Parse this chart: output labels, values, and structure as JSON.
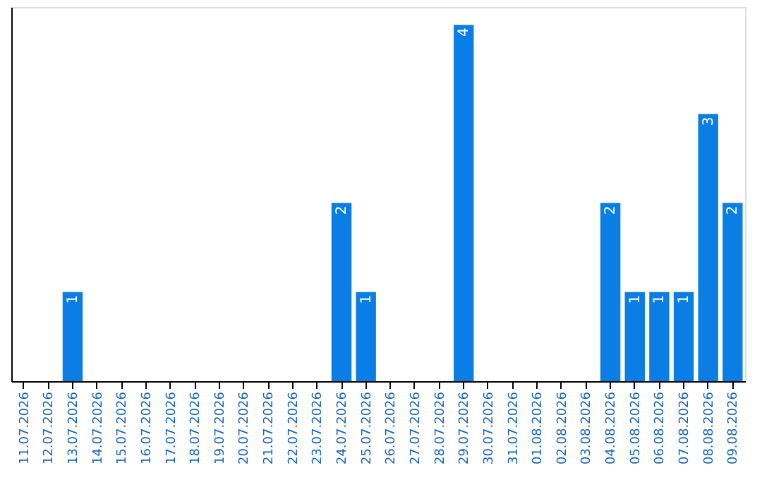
{
  "chart_data": {
    "type": "bar",
    "categories": [
      "11.07.2026",
      "12.07.2026",
      "13.07.2026",
      "14.07.2026",
      "15.07.2026",
      "16.07.2026",
      "17.07.2026",
      "18.07.2026",
      "19.07.2026",
      "20.07.2026",
      "21.07.2026",
      "22.07.2026",
      "23.07.2026",
      "24.07.2026",
      "25.07.2026",
      "26.07.2026",
      "27.07.2026",
      "28.07.2026",
      "29.07.2026",
      "30.07.2026",
      "31.07.2026",
      "01.08.2026",
      "02.08.2026",
      "03.08.2026",
      "04.08.2026",
      "05.08.2026",
      "06.08.2026",
      "07.08.2026",
      "08.08.2026",
      "09.08.2026"
    ],
    "values": [
      0,
      0,
      1,
      0,
      0,
      0,
      0,
      0,
      0,
      0,
      0,
      0,
      0,
      2,
      1,
      0,
      0,
      0,
      4,
      0,
      0,
      0,
      0,
      0,
      2,
      1,
      1,
      1,
      3,
      2
    ],
    "value_labels": [
      null,
      null,
      "1",
      null,
      null,
      null,
      null,
      null,
      null,
      null,
      null,
      null,
      null,
      "2",
      "1",
      null,
      null,
      null,
      "4",
      null,
      null,
      null,
      null,
      null,
      "2",
      "1",
      "1",
      "1",
      "3",
      "2"
    ],
    "color": "#0a7ee4",
    "ylim": [
      0,
      4.2
    ],
    "tick_labels": "x",
    "grid": false
  }
}
